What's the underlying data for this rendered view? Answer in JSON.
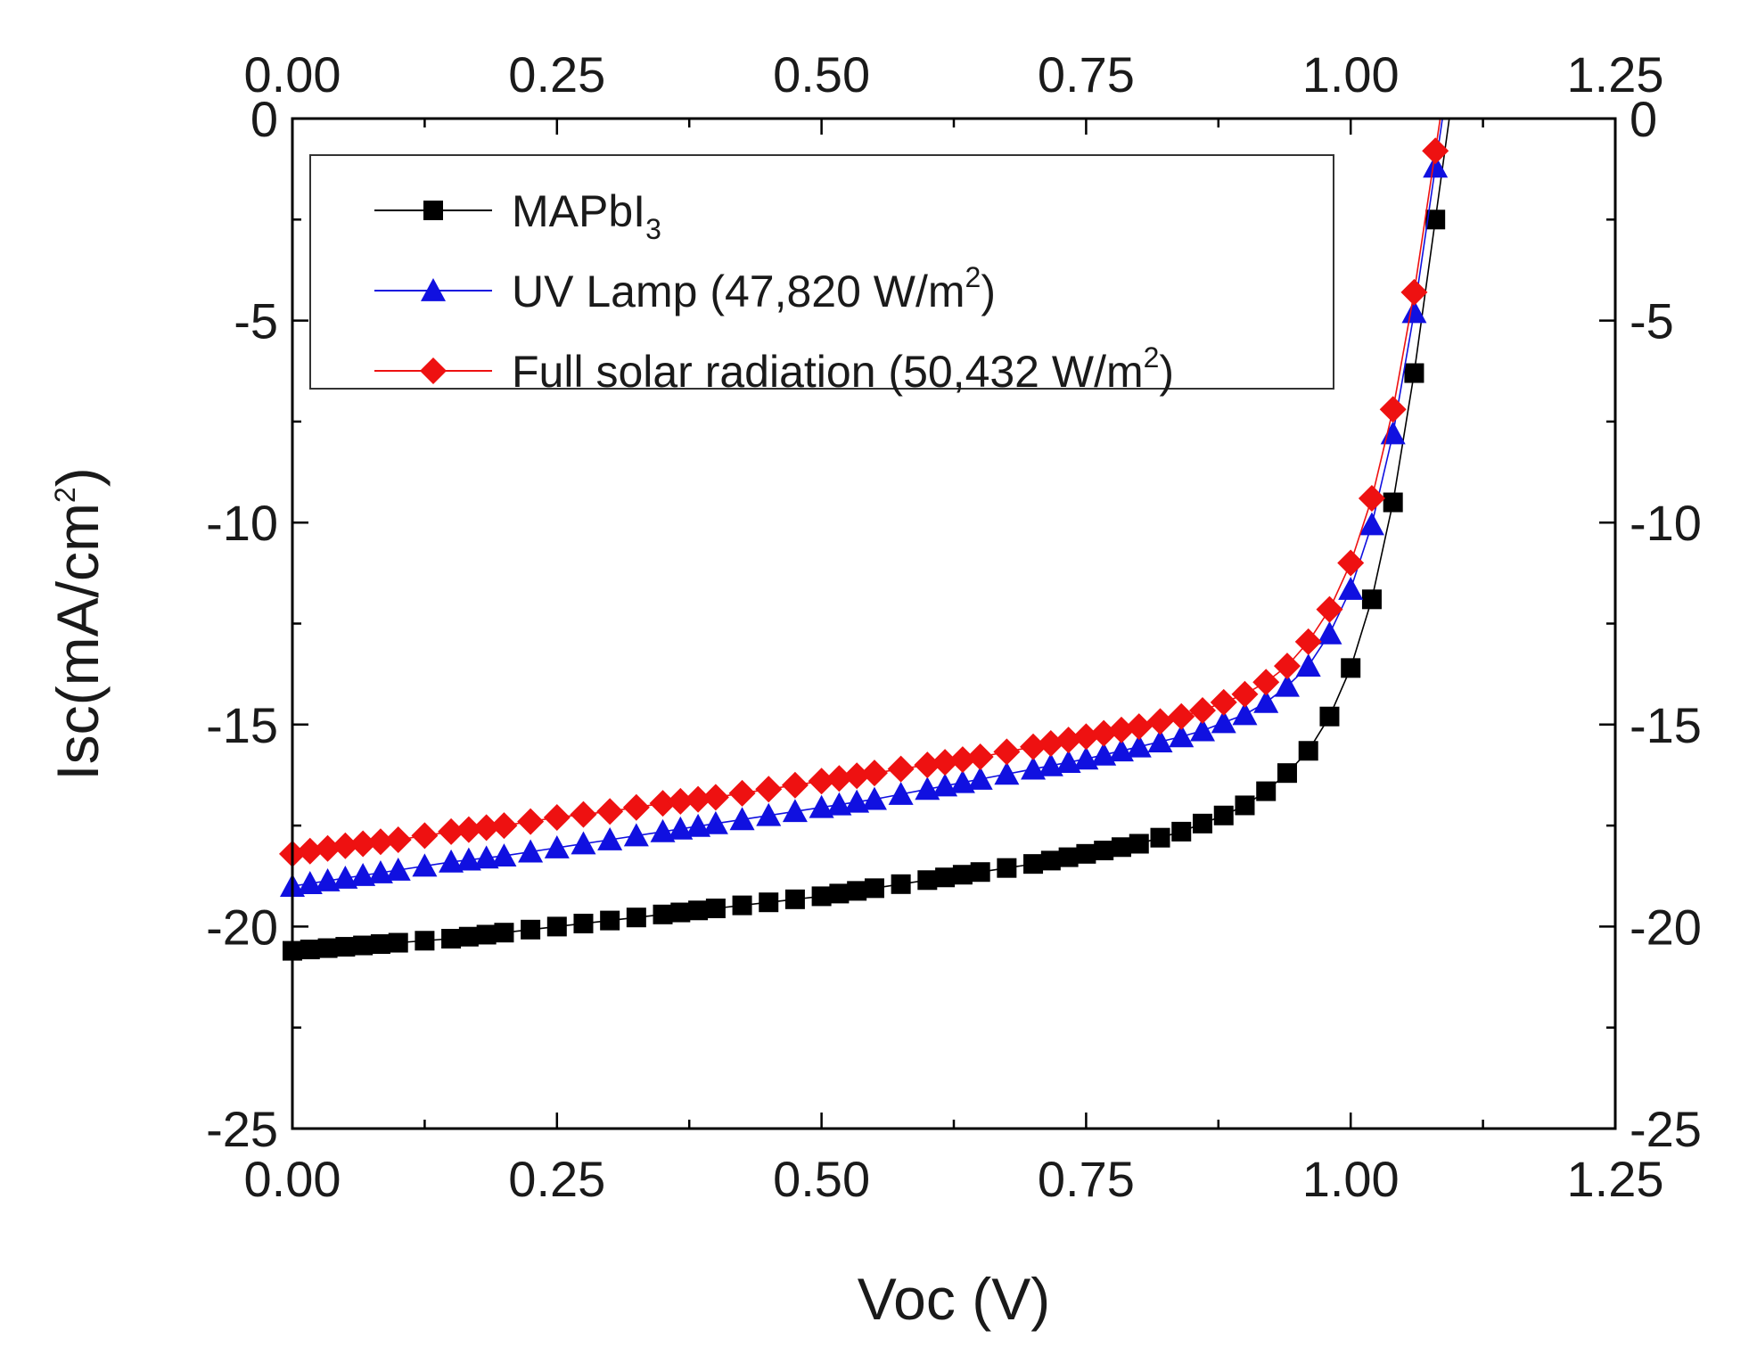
{
  "chart_data": {
    "type": "scatter",
    "xlabel": "Voc (V)",
    "ylabel_main": "Isc(mA/cm",
    "ylabel_sup": "2",
    "ylabel_close": ")",
    "xlim": [
      0,
      1.25
    ],
    "ylim": [
      -25,
      0
    ],
    "x_ticks": [
      "0.00",
      "0.25",
      "0.50",
      "0.75",
      "1.00",
      "1.25"
    ],
    "y_ticks": [
      "0",
      "-5",
      "-10",
      "-15",
      "-20",
      "-25"
    ],
    "series": [
      {
        "name": "MAPbI",
        "name_sub": "3",
        "name_tail": "",
        "name_sup": "",
        "name_close": "",
        "color": "#000000",
        "marker": "square",
        "points": [
          [
            0.0,
            -20.6
          ],
          [
            0.05,
            -20.5
          ],
          [
            0.1,
            -20.4
          ],
          [
            0.15,
            -20.3
          ],
          [
            0.2,
            -20.15
          ],
          [
            0.25,
            -20.0
          ],
          [
            0.3,
            -19.85
          ],
          [
            0.35,
            -19.7
          ],
          [
            0.4,
            -19.55
          ],
          [
            0.45,
            -19.4
          ],
          [
            0.5,
            -19.25
          ],
          [
            0.55,
            -19.05
          ],
          [
            0.6,
            -18.85
          ],
          [
            0.65,
            -18.65
          ],
          [
            0.7,
            -18.45
          ],
          [
            0.75,
            -18.2
          ],
          [
            0.8,
            -17.95
          ],
          [
            0.84,
            -17.65
          ],
          [
            0.86,
            -17.45
          ],
          [
            0.88,
            -17.25
          ],
          [
            0.9,
            -17.0
          ],
          [
            0.92,
            -16.65
          ],
          [
            0.94,
            -16.2
          ],
          [
            0.96,
            -15.65
          ],
          [
            0.98,
            -14.8
          ],
          [
            1.0,
            -13.6
          ],
          [
            1.02,
            -11.9
          ],
          [
            1.04,
            -9.5
          ],
          [
            1.06,
            -6.3
          ],
          [
            1.08,
            -2.5
          ]
        ]
      },
      {
        "name": "UV Lamp (47,820 W/m",
        "name_sub": "",
        "name_tail": "",
        "name_sup": "2",
        "name_close": ")",
        "color": "#1010e0",
        "marker": "triangle",
        "points": [
          [
            0.0,
            -19.0
          ],
          [
            0.05,
            -18.8
          ],
          [
            0.1,
            -18.6
          ],
          [
            0.15,
            -18.4
          ],
          [
            0.2,
            -18.25
          ],
          [
            0.25,
            -18.05
          ],
          [
            0.3,
            -17.85
          ],
          [
            0.35,
            -17.65
          ],
          [
            0.4,
            -17.45
          ],
          [
            0.45,
            -17.25
          ],
          [
            0.5,
            -17.05
          ],
          [
            0.55,
            -16.85
          ],
          [
            0.6,
            -16.6
          ],
          [
            0.65,
            -16.35
          ],
          [
            0.7,
            -16.1
          ],
          [
            0.75,
            -15.85
          ],
          [
            0.8,
            -15.55
          ],
          [
            0.84,
            -15.3
          ],
          [
            0.86,
            -15.15
          ],
          [
            0.88,
            -14.95
          ],
          [
            0.9,
            -14.75
          ],
          [
            0.92,
            -14.45
          ],
          [
            0.94,
            -14.05
          ],
          [
            0.96,
            -13.55
          ],
          [
            0.98,
            -12.75
          ],
          [
            1.0,
            -11.65
          ],
          [
            1.02,
            -10.05
          ],
          [
            1.04,
            -7.8
          ],
          [
            1.06,
            -4.8
          ],
          [
            1.08,
            -1.2
          ]
        ]
      },
      {
        "name": "Full solar radiation (50,432 W/m",
        "name_sub": "",
        "name_tail": "",
        "name_sup": "2",
        "name_close": ")",
        "color": "#ee1111",
        "marker": "diamond",
        "points": [
          [
            0.0,
            -18.2
          ],
          [
            0.05,
            -18.0
          ],
          [
            0.1,
            -17.85
          ],
          [
            0.15,
            -17.65
          ],
          [
            0.2,
            -17.5
          ],
          [
            0.25,
            -17.3
          ],
          [
            0.3,
            -17.15
          ],
          [
            0.35,
            -16.95
          ],
          [
            0.4,
            -16.8
          ],
          [
            0.45,
            -16.6
          ],
          [
            0.5,
            -16.4
          ],
          [
            0.55,
            -16.2
          ],
          [
            0.6,
            -16.0
          ],
          [
            0.65,
            -15.8
          ],
          [
            0.7,
            -15.55
          ],
          [
            0.75,
            -15.3
          ],
          [
            0.8,
            -15.05
          ],
          [
            0.84,
            -14.8
          ],
          [
            0.86,
            -14.65
          ],
          [
            0.88,
            -14.45
          ],
          [
            0.9,
            -14.25
          ],
          [
            0.92,
            -13.95
          ],
          [
            0.94,
            -13.55
          ],
          [
            0.96,
            -12.95
          ],
          [
            0.98,
            -12.15
          ],
          [
            1.0,
            -11.0
          ],
          [
            1.02,
            -9.4
          ],
          [
            1.04,
            -7.2
          ],
          [
            1.06,
            -4.3
          ],
          [
            1.08,
            -0.8
          ]
        ]
      }
    ]
  }
}
